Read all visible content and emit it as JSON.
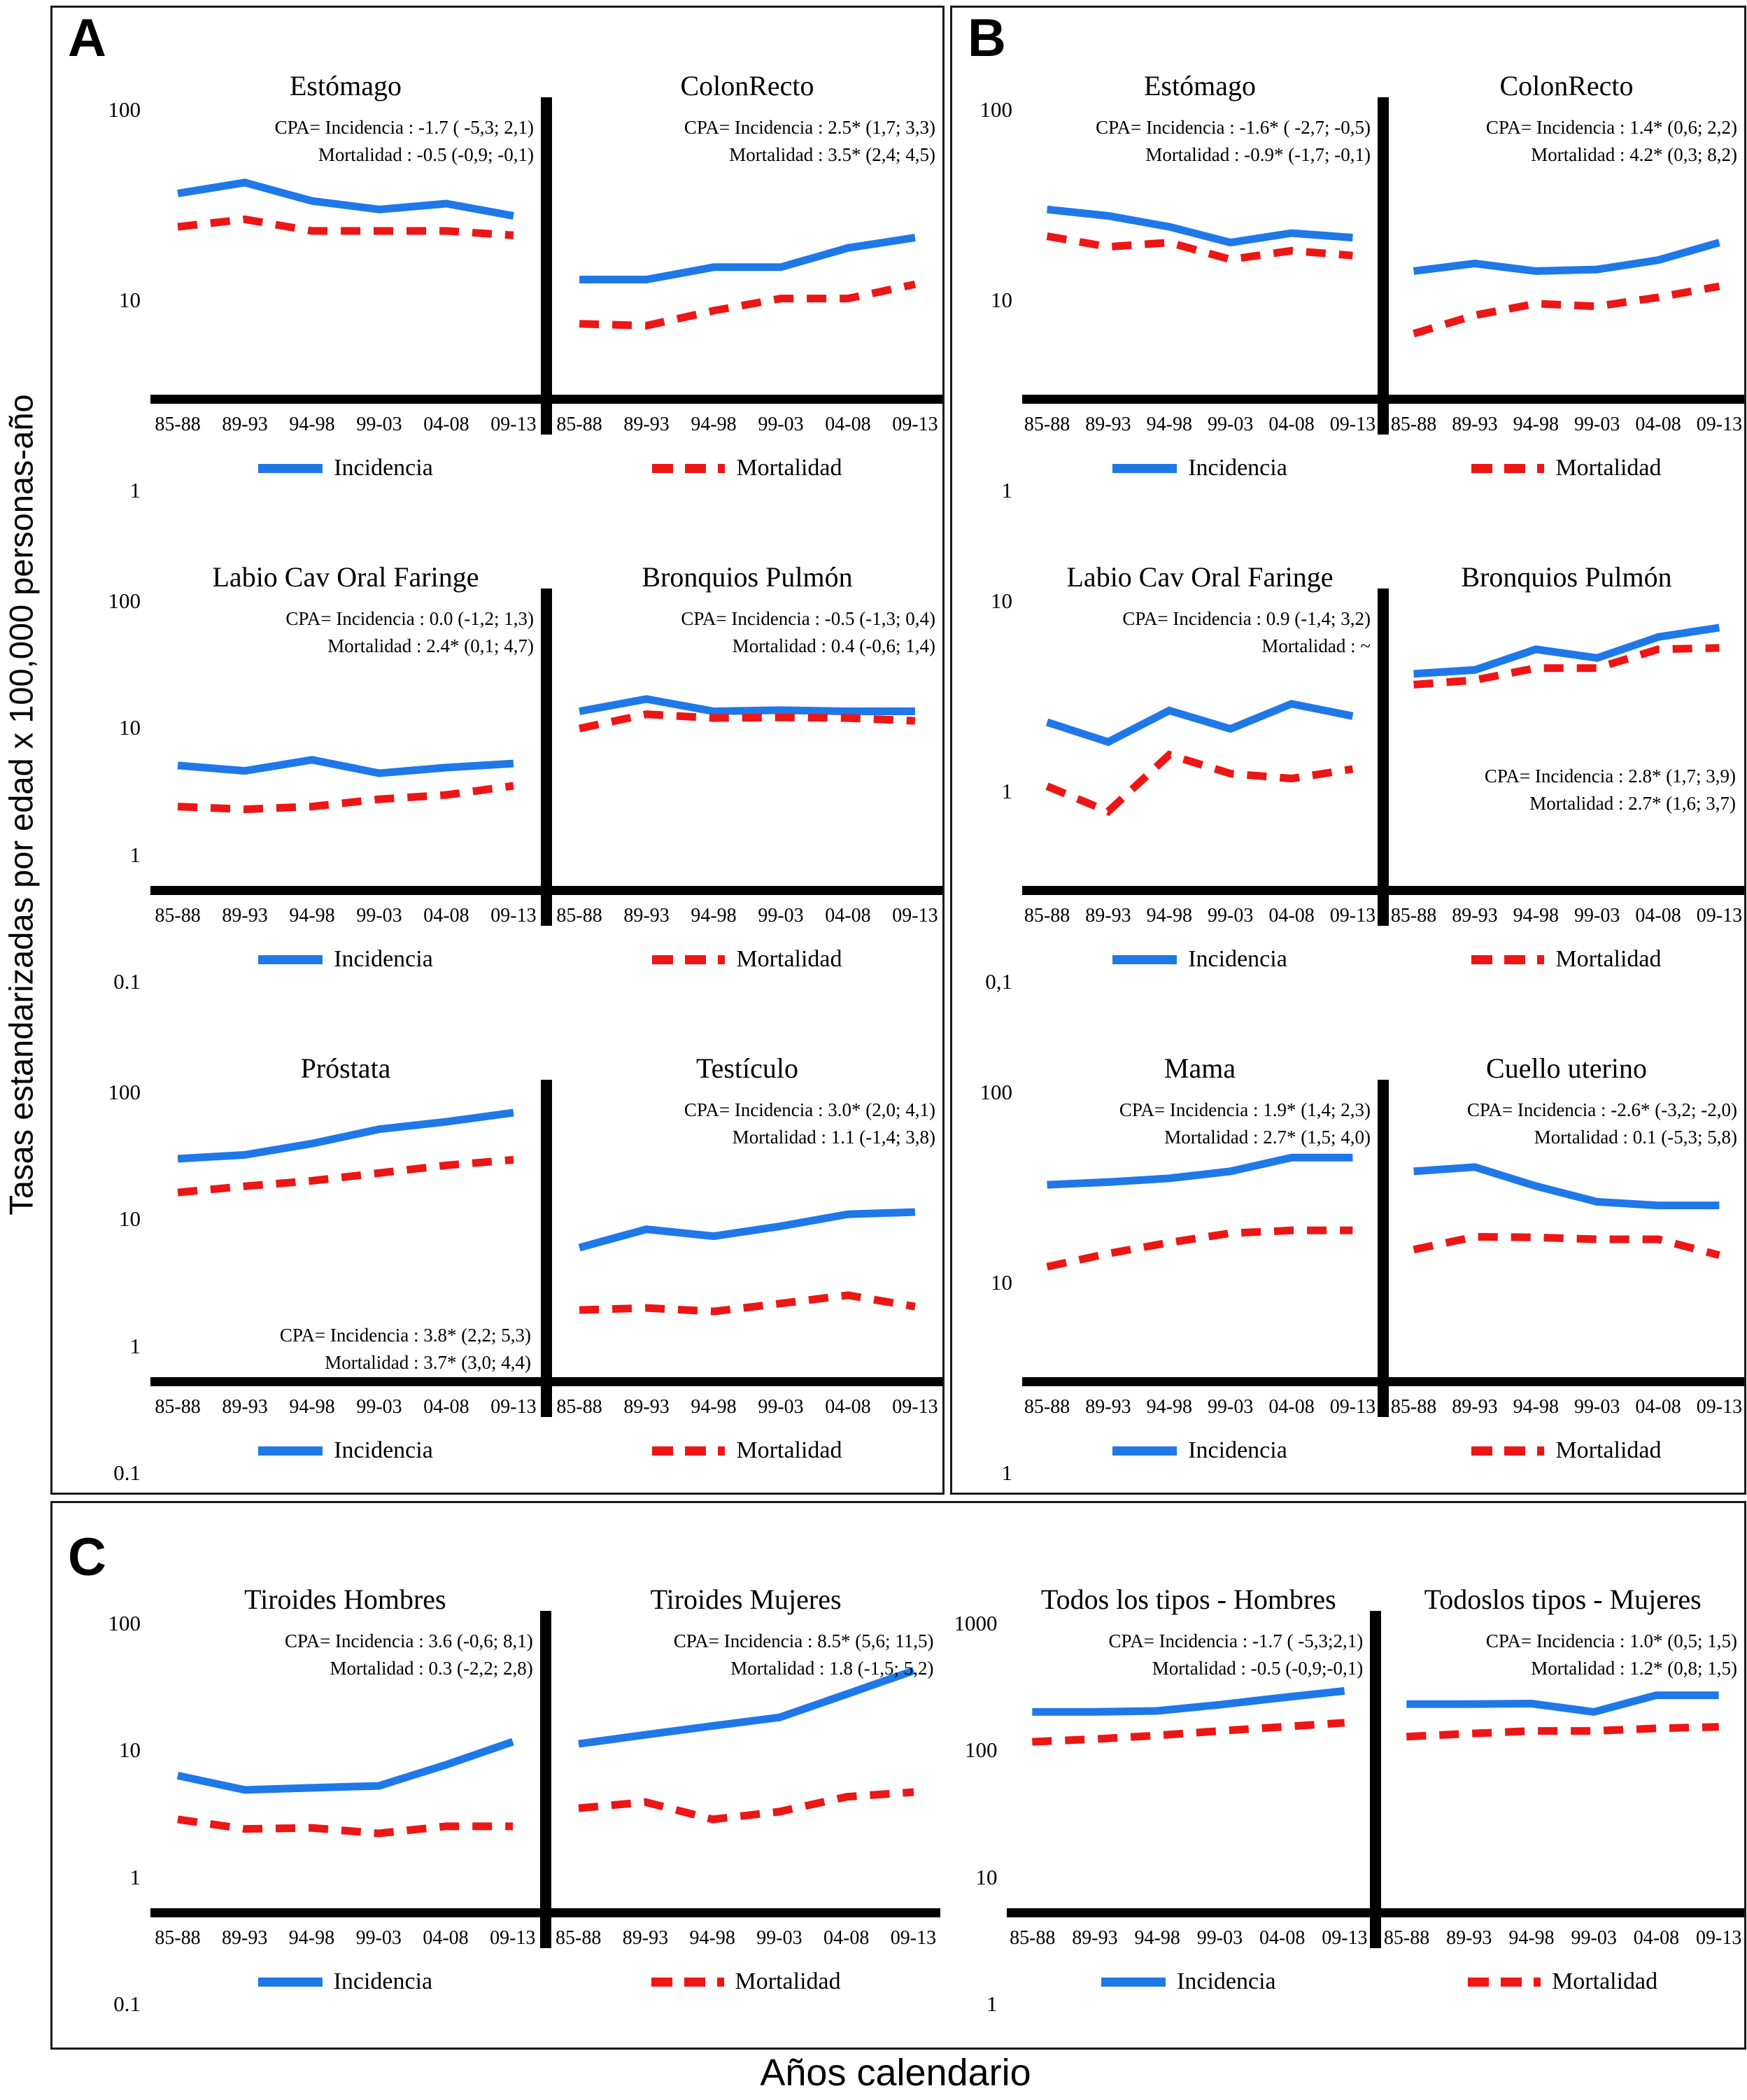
{
  "figure": {
    "y_axis_label": "Tasas estandarizadas por edad x 100,000 personas-año",
    "x_axis_label": "Años calendario"
  },
  "chart_data": {
    "type": "line",
    "scale": "log-y",
    "grid": false,
    "categories": [
      "85-88",
      "89-93",
      "94-98",
      "99-03",
      "04-08",
      "09-13"
    ],
    "legend": {
      "incidencia": "Incidencia",
      "mortalidad": "Mortalidad"
    },
    "colors": {
      "incidencia": "#1f78e8",
      "mortalidad": "#ee1515"
    },
    "panels": [
      {
        "label": "A",
        "layout": "column",
        "pairs": [
          {
            "yticks": [
              "100",
              "10",
              "1"
            ],
            "ymax": 100,
            "ymin": 1,
            "charts": [
              {
                "title": "Estómago",
                "cpa_pos": "tr",
                "cpa": [
                  "CPA= Incidencia : -1.7 ( -5,3; 2,1)",
                  "Mortalidad : -0.5 (-0,9; -0,1)"
                ],
                "incidencia": [
                  27,
                  32,
                  24,
                  21,
                  23,
                  19
                ],
                "mortalidad": [
                  16,
                  18,
                  15,
                  15,
                  15,
                  14
                ]
              },
              {
                "title": "ColonRecto",
                "cpa_pos": "tr",
                "cpa": [
                  "CPA= Incidencia : 2.5* (1,7; 3,3)",
                  "Mortalidad : 3.5* (2,4; 4,5)"
                ],
                "incidencia": [
                  7,
                  7,
                  8.5,
                  8.5,
                  11.5,
                  13.5
                ],
                "mortalidad": [
                  3.5,
                  3.4,
                  4.3,
                  5.2,
                  5.2,
                  6.5
                ]
              }
            ]
          },
          {
            "yticks": [
              "100",
              "10",
              "1",
              "0.1"
            ],
            "ymax": 100,
            "ymin": 0.1,
            "charts": [
              {
                "title": "Labio Cav Oral Faringe",
                "cpa_pos": "tr",
                "cpa": [
                  "CPA= Incidencia : 0.0 (-1,2; 1,3)",
                  "Mortalidad : 2.4* (0,1; 4,7)"
                ],
                "incidencia": [
                  2.1,
                  1.85,
                  2.4,
                  1.75,
                  2.0,
                  2.2
                ],
                "mortalidad": [
                  0.8,
                  0.75,
                  0.8,
                  0.95,
                  1.05,
                  1.3
                ]
              },
              {
                "title": "Bronquios Pulmón",
                "cpa_pos": "tr",
                "cpa": [
                  "CPA= Incidencia : -0.5 (-1,3; 0,4)",
                  "Mortalidad : 0.4 (-0,6; 1,4)"
                ],
                "incidencia": [
                  7.5,
                  10,
                  7.5,
                  7.7,
                  7.5,
                  7.5
                ],
                "mortalidad": [
                  5.0,
                  7.0,
                  6.4,
                  6.5,
                  6.4,
                  6.0
                ]
              }
            ]
          },
          {
            "yticks": [
              "100",
              "10",
              "1",
              "0.1"
            ],
            "ymax": 100,
            "ymin": 0.1,
            "charts": [
              {
                "title": "Próstata",
                "cpa_pos": "br",
                "cpa": [
                  "CPA= Incidencia : 3.8* (2,2; 5,3)",
                  "Mortalidad : 3.7* (3,0; 4,4)"
                ],
                "incidencia": [
                  21,
                  23,
                  30,
                  42,
                  50,
                  62
                ],
                "mortalidad": [
                  9.5,
                  11,
                  12.5,
                  15,
                  18,
                  20.5
                ]
              },
              {
                "title": "Testículo",
                "cpa_pos": "tr",
                "cpa": [
                  "CPA= Incidencia : 3.0* (2,0; 4,1)",
                  "Mortalidad : 1.1 (-1,4; 3,8)"
                ],
                "incidencia": [
                  2.6,
                  4.0,
                  3.4,
                  4.3,
                  5.7,
                  6.0
                ],
                "mortalidad": [
                  0.6,
                  0.63,
                  0.58,
                  0.7,
                  0.85,
                  0.65
                ]
              }
            ]
          }
        ]
      },
      {
        "label": "B",
        "layout": "column",
        "pairs": [
          {
            "yticks": [
              "100",
              "10",
              "1"
            ],
            "ymax": 100,
            "ymin": 1,
            "charts": [
              {
                "title": "Estómago",
                "cpa_pos": "tr",
                "cpa": [
                  "CPA= Incidencia : -1.6* ( -2,7; -0,5)",
                  "Mortalidad : -0.9* (-1,7; -0,1)"
                ],
                "incidencia": [
                  21,
                  19,
                  16,
                  12.5,
                  14.5,
                  13.5
                ],
                "mortalidad": [
                  13.8,
                  11.7,
                  12.5,
                  9.6,
                  11,
                  10.2
                ]
              },
              {
                "title": "ColonRecto",
                "cpa_pos": "tr",
                "cpa": [
                  "CPA= Incidencia : 1.4* (0,6; 2,2)",
                  "Mortalidad : 4.2* (0,3; 8,2)"
                ],
                "incidencia": [
                  8,
                  9,
                  8,
                  8.2,
                  9.5,
                  12.5
                ],
                "mortalidad": [
                  3,
                  4,
                  4.8,
                  4.6,
                  5.3,
                  6.3
                ]
              }
            ]
          },
          {
            "yticks": [
              "10",
              "1",
              "0,1"
            ],
            "ymax": 10,
            "ymin": 0.1,
            "charts": [
              {
                "title": "Labio Cav Oral Faringe",
                "cpa_pos": "tr",
                "cpa": [
                  "CPA= Incidencia : 0.9 (-1,4; 3,2)",
                  "Mortalidad : ~"
                ],
                "incidencia": [
                  1.5,
                  1.1,
                  1.8,
                  1.35,
                  2.0,
                  1.65
                ],
                "mortalidad": [
                  0.55,
                  0.37,
                  0.9,
                  0.67,
                  0.62,
                  0.72
                ]
              },
              {
                "title": "Bronquios Pulmón",
                "cpa_pos": "mid",
                "cpa": [
                  "CPA= Incidencia : 2.8* (1,7; 3,9)",
                  "Mortalidad : 2.7* (1,6; 3,7)"
                ],
                "incidencia": [
                  3.2,
                  3.4,
                  4.7,
                  4.1,
                  5.7,
                  6.6
                ],
                "mortalidad": [
                  2.7,
                  2.9,
                  3.5,
                  3.5,
                  4.7,
                  4.8
                ]
              }
            ]
          },
          {
            "yticks": [
              "100",
              "10",
              "1"
            ],
            "ymax": 100,
            "ymin": 1,
            "charts": [
              {
                "title": "Mama",
                "cpa_pos": "tr",
                "cpa": [
                  "CPA= Incidencia : 1.9* (1,4; 2,3)",
                  "Mortalidad : 2.7* (1,5; 4,0)"
                ],
                "incidencia": [
                  23.5,
                  24.5,
                  26,
                  29,
                  36,
                  36
                ],
                "mortalidad": [
                  6.5,
                  8,
                  9.5,
                  11,
                  11.5,
                  11.5
                ]
              },
              {
                "title": "Cuello uterino",
                "cpa_pos": "tr",
                "cpa": [
                  "CPA= Incidencia : -2.6* (-3,2; -2,0)",
                  "Mortalidad : 0.1 (-5,3; 5,8)"
                ],
                "incidencia": [
                  29,
                  31,
                  23,
                  18,
                  17,
                  17
                ],
                "mortalidad": [
                  8.5,
                  10.4,
                  10.3,
                  10,
                  10,
                  7.8
                ]
              }
            ]
          }
        ]
      },
      {
        "label": "C",
        "layout": "row",
        "pairs": [
          {
            "yticks": [
              "100",
              "10",
              "1",
              "0.1"
            ],
            "ymax": 100,
            "ymin": 0.1,
            "charts": [
              {
                "title": "Tiroides Hombres",
                "cpa_pos": "tr",
                "cpa": [
                  "CPA= Incidencia : 3.6 (-0,6; 8,1)",
                  "Mortalidad : 0.3 (-2,2; 2,8)"
                ],
                "incidencia": [
                  2.8,
                  2.0,
                  2.1,
                  2.2,
                  3.6,
                  6.2
                ],
                "mortalidad": [
                  1.0,
                  0.8,
                  0.82,
                  0.72,
                  0.85,
                  0.85
                ]
              },
              {
                "title": "Tiroides Mujeres",
                "cpa_pos": "tr",
                "cpa": [
                  "CPA= Incidencia : 8.5* (5,6; 11,5)",
                  "Mortalidad : 1.8 (-1,5; 5,2)"
                ],
                "incidencia": [
                  5.9,
                  7.3,
                  9,
                  11,
                  19,
                  33
                ],
                "mortalidad": [
                  1.3,
                  1.5,
                  1.0,
                  1.2,
                  1.7,
                  1.9
                ]
              }
            ]
          },
          {
            "yticks": [
              "1000",
              "100",
              "10",
              "1"
            ],
            "ymax": 1000,
            "ymin": 1,
            "charts": [
              {
                "title": "Todos los tipos - Hombres",
                "cpa_pos": "tr",
                "cpa": [
                  "CPA= Incidencia : -1.7 ( -5,3;2,1)",
                  "Mortalidad : -0.5 (-0,9;-0,1)"
                ],
                "incidencia": [
                  125,
                  125,
                  128,
                  148,
                  175,
                  205
                ],
                "mortalidad": [
                  62,
                  66,
                  72,
                  80,
                  88,
                  97
                ]
              },
              {
                "title": "Todoslos tipos - Mujeres",
                "cpa_pos": "tr",
                "cpa": [
                  "CPA= Incidencia : 1.0* (0,5; 1,5)",
                  "Mortalidad : 1.2* (0,8; 1,5)"
                ],
                "incidencia": [
                  150,
                  150,
                  152,
                  125,
                  185,
                  185
                ],
                "mortalidad": [
                  70,
                  75,
                  80,
                  80,
                  85,
                  88
                ]
              }
            ]
          }
        ]
      }
    ]
  }
}
